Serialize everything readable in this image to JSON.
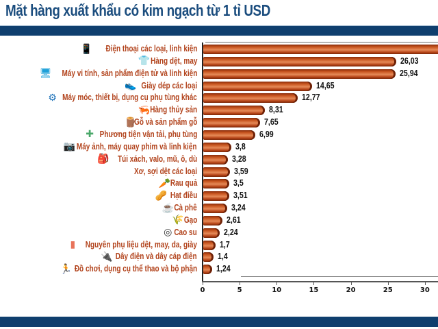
{
  "title": "Mặt hàng xuất khẩu có kim ngạch từ 1 tỉ USD",
  "colors": {
    "navy": "#0f3f6e",
    "title": "#1b4d7e",
    "bar": "#c8551f",
    "label": "#b2431c"
  },
  "axis": {
    "ticks": [
      "0",
      "5",
      "10",
      "15",
      "20",
      "25",
      "30"
    ]
  },
  "rows": [
    {
      "label": "Điện thoại các loại, linh kiện",
      "value_label": "",
      "icon": "phone-icon"
    },
    {
      "label": "Hàng dệt, may",
      "value_label": "26,03",
      "icon": "shirt-icon"
    },
    {
      "label": "Máy vi tính, sản phẩm điện tử và linh kiện",
      "value_label": "25,94",
      "icon": "computer-icon"
    },
    {
      "label": "Giày dép các loại",
      "value_label": "14,65",
      "icon": "shoe-icon"
    },
    {
      "label": "Máy móc, thiết bị, dụng cụ phụ tùng khác",
      "value_label": "12,77",
      "icon": "machinery-icon"
    },
    {
      "label": "Hàng thủy sản",
      "value_label": "8,31",
      "icon": "seafood-icon"
    },
    {
      "label": "Gỗ và sản phẩm gỗ",
      "value_label": "7,65",
      "icon": "wood-log-icon"
    },
    {
      "label": "Phương tiện vận tải, phụ tùng",
      "value_label": "6,99",
      "icon": "vehicle-parts-icon"
    },
    {
      "label": "Máy ảnh, máy quay phim và linh kiện",
      "value_label": "3,8",
      "icon": "camera-icon"
    },
    {
      "label": "Túi xách, valo, mũ, ô, dù",
      "value_label": "3,28",
      "icon": "backpack-icon"
    },
    {
      "label": "Xơ, sợi dệt các loại",
      "value_label": "3,59",
      "icon": ""
    },
    {
      "label": "Rau quả",
      "value_label": "3,5",
      "icon": "vegetables-icon"
    },
    {
      "label": "Hạt điều",
      "value_label": "3,51",
      "icon": "cashew-icon"
    },
    {
      "label": "Cà phê",
      "value_label": "3,24",
      "icon": "coffee-bean-icon"
    },
    {
      "label": "Gạo",
      "value_label": "2,61",
      "icon": "rice-icon"
    },
    {
      "label": "Cao su",
      "value_label": "2,24",
      "icon": "tire-icon"
    },
    {
      "label": "Nguyên phụ liệu dệt, may, da, giày",
      "value_label": "1,7",
      "icon": "fabric-roll-icon"
    },
    {
      "label": "Dây điện và dây cáp điện",
      "value_label": "1,4",
      "icon": "cable-icon"
    },
    {
      "label": "Đồ chơi, dụng cụ thể thao và bộ phận",
      "value_label": "1,24",
      "icon": "treadmill-icon"
    }
  ],
  "chart_data": {
    "type": "bar",
    "orientation": "horizontal",
    "title": "Mặt hàng xuất khẩu có kim ngạch từ 1 tỉ USD",
    "xlabel": "",
    "ylabel": "",
    "xlim": [
      0,
      30
    ],
    "xticks": [
      0,
      5,
      10,
      15,
      20,
      25,
      30
    ],
    "grid": false,
    "legend": null,
    "categories": [
      "Điện thoại các loại, linh kiện",
      "Hàng dệt, may",
      "Máy vi tính, sản phẩm điện tử và linh kiện",
      "Giày dép các loại",
      "Máy móc, thiết bị, dụng cụ phụ tùng khác",
      "Hàng thủy sản",
      "Gỗ và sản phẩm gỗ",
      "Phương tiện vận tải, phụ tùng",
      "Máy ảnh, máy quay phim và linh kiện",
      "Túi xách, valo, mũ, ô, dù",
      "Xơ, sợi dệt các loại",
      "Rau quả",
      "Hạt điều",
      "Cà phê",
      "Gạo",
      "Cao su",
      "Nguyên phụ liệu dệt, may, da, giày",
      "Dây điện và dây cáp điện",
      "Đồ chơi, dụng cụ thể thao và bộ phận"
    ],
    "values": [
      null,
      26.03,
      25.94,
      14.65,
      12.77,
      8.31,
      7.65,
      6.99,
      3.8,
      3.28,
      3.59,
      3.5,
      3.51,
      3.24,
      2.61,
      2.24,
      1.7,
      1.4,
      1.24
    ],
    "annotations": [
      "First bar (Điện thoại các loại, linh kiện) extends beyond the visible axis (>31); its value label is cropped out of view"
    ]
  }
}
